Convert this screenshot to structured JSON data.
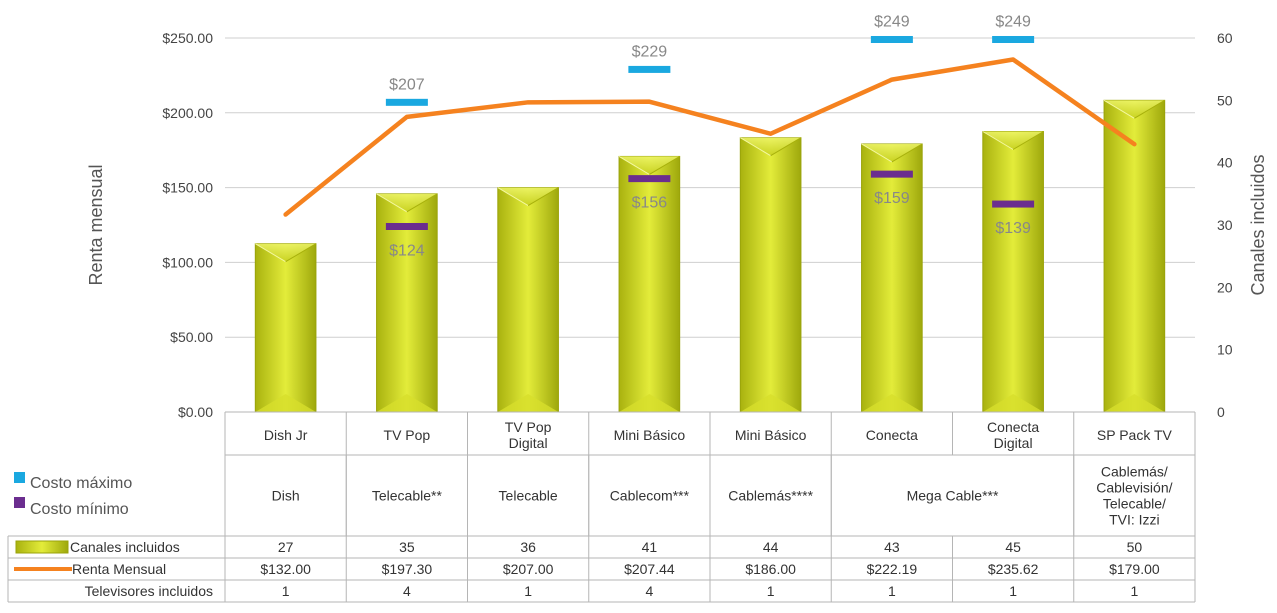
{
  "chart_data": {
    "type": "bar",
    "categories": [
      "Dish Jr",
      "TV Pop",
      "TV Pop Digital",
      "Mini Básico",
      "Mini Básico",
      "Conecta",
      "Conecta Digital",
      "SP Pack TV"
    ],
    "providers": [
      {
        "label": "Dish",
        "span": [
          0,
          0
        ]
      },
      {
        "label": "Telecable**",
        "span": [
          1,
          1
        ]
      },
      {
        "label": "Telecable",
        "span": [
          2,
          2
        ]
      },
      {
        "label": "Cablecom***",
        "span": [
          3,
          3
        ]
      },
      {
        "label": "Cablemás****",
        "span": [
          4,
          4
        ]
      },
      {
        "label": "Mega Cable***",
        "span": [
          5,
          6
        ]
      },
      {
        "label": "Cablemás/ Cablevisión/ Telecable/ TVI: Izzi",
        "lines": [
          "Cablemás/",
          "Cablevisión/",
          "Telecable/",
          "TVI: Izzi"
        ],
        "span": [
          7,
          7
        ]
      }
    ],
    "series": [
      {
        "name": "Canales incluidos",
        "kind": "bar",
        "axis": "right",
        "values": [
          27,
          35,
          36,
          41,
          44,
          43,
          45,
          50
        ],
        "color": "#c7d21a"
      },
      {
        "name": "Renta Mensual",
        "kind": "line",
        "axis": "left",
        "values": [
          132.0,
          197.3,
          207.0,
          207.44,
          186.0,
          222.19,
          235.62,
          179.0
        ],
        "color": "#f5821f"
      }
    ],
    "table_rows": [
      {
        "label": "Canales incluidos",
        "marker": "bar",
        "values": [
          "27",
          "35",
          "36",
          "41",
          "44",
          "43",
          "45",
          "50"
        ]
      },
      {
        "label": "Renta Mensual",
        "marker": "line",
        "values": [
          "$132.00",
          "$197.30",
          "$207.00",
          "$207.44",
          "$186.00",
          "$222.19",
          "$235.62",
          "$179.00"
        ]
      },
      {
        "label": "Televisores incluidos",
        "marker": "none",
        "values": [
          "1",
          "4",
          "1",
          "4",
          "1",
          "1",
          "1",
          "1"
        ]
      }
    ],
    "cost_max": {
      "name": "Costo máximo",
      "color": "#1aa8e0",
      "points": [
        {
          "category_index": 1,
          "value": 207,
          "label": "$207"
        },
        {
          "category_index": 3,
          "value": 229,
          "label": "$229"
        },
        {
          "category_index": 5,
          "value": 249,
          "label": "$249"
        },
        {
          "category_index": 6,
          "value": 249,
          "label": "$249"
        }
      ]
    },
    "cost_min": {
      "name": "Costo mínimo",
      "color": "#6b2d8f",
      "points": [
        {
          "category_index": 1,
          "value": 124,
          "label": "$124"
        },
        {
          "category_index": 3,
          "value": 156,
          "label": "$156"
        },
        {
          "category_index": 5,
          "value": 159,
          "label": "$159"
        },
        {
          "category_index": 6,
          "value": 139,
          "label": "$139"
        }
      ]
    },
    "ylabel_left": "Renta mensual",
    "ylabel_right": "Canales incluidos",
    "ylim_left": [
      0,
      250
    ],
    "yticks_left": [
      "$0.00",
      "$50.00",
      "$100.00",
      "$150.00",
      "$200.00",
      "$250.00"
    ],
    "ylim_right": [
      0,
      60
    ],
    "yticks_right": [
      "0",
      "10",
      "20",
      "30",
      "40",
      "50",
      "60"
    ],
    "grid": true,
    "legend_position": "left"
  }
}
